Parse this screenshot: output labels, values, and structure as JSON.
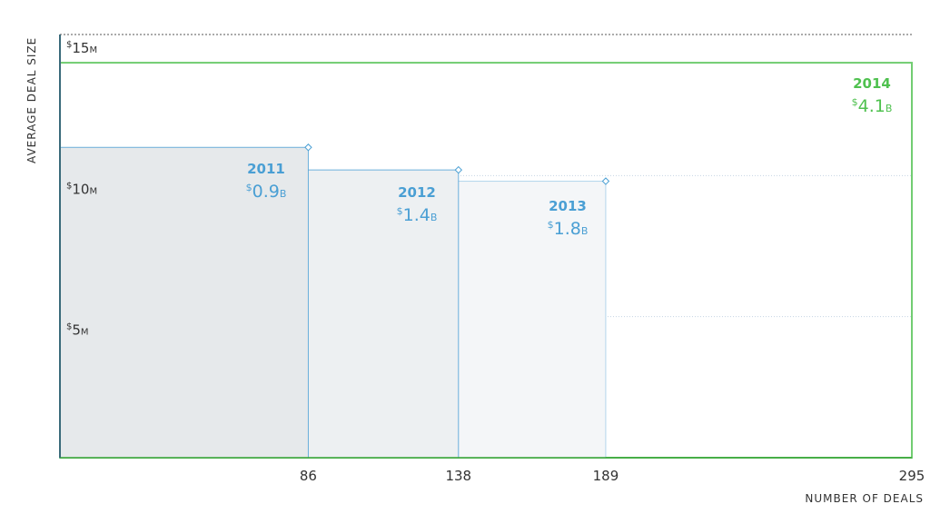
{
  "chart_data": {
    "type": "area",
    "xlabel": "NUMBER OF DEALS",
    "ylabel": "AVERAGE DEAL SIZE",
    "xlim": [
      0,
      295
    ],
    "ylim": [
      0,
      15
    ],
    "y_ticks": [
      {
        "value": 15,
        "currency": "$",
        "number": "15",
        "unit": "M"
      },
      {
        "value": 10,
        "currency": "$",
        "number": "10",
        "unit": "M"
      },
      {
        "value": 5,
        "currency": "$",
        "number": "5",
        "unit": "M"
      }
    ],
    "x_ticks": [
      86,
      138,
      189,
      295
    ],
    "series": [
      {
        "year": "2011",
        "deals": 86,
        "avg_deal_size": 11.0,
        "total_currency": "$",
        "total_number": "0.9",
        "total_unit": "B",
        "color": "#4a9fd4"
      },
      {
        "year": "2012",
        "deals": 138,
        "avg_deal_size": 10.2,
        "total_currency": "$",
        "total_number": "1.4",
        "total_unit": "B",
        "color": "#4a9fd4"
      },
      {
        "year": "2013",
        "deals": 189,
        "avg_deal_size": 9.8,
        "total_currency": "$",
        "total_number": "1.8",
        "total_unit": "B",
        "color": "#4a9fd4"
      },
      {
        "year": "2014",
        "deals": 295,
        "avg_deal_size": 14.0,
        "total_currency": "$",
        "total_number": "4.1",
        "total_unit": "B",
        "color": "#4fc14f"
      }
    ],
    "grid": true,
    "colors": {
      "text": "#333333",
      "grid": "#c5d4e3",
      "blue": "#4a9fd4",
      "green": "#4fc14f"
    }
  }
}
